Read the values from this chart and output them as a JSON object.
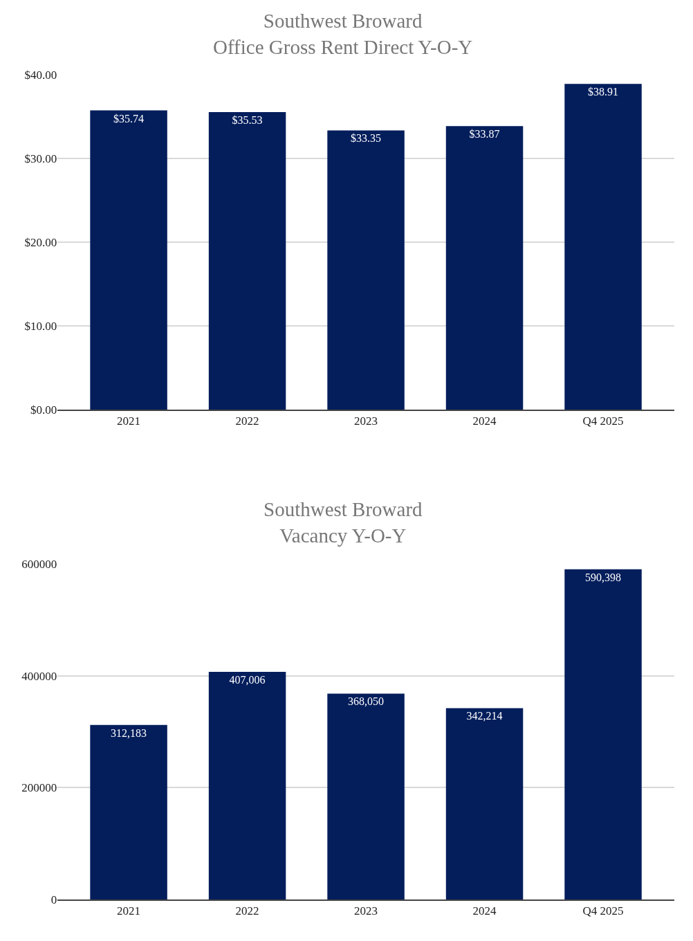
{
  "chart_data": [
    {
      "type": "bar",
      "title": "Southwest Broward\nOffice Gross Rent Direct Y-O-Y",
      "categories": [
        "2021",
        "2022",
        "2023",
        "2024",
        "Q4 2025"
      ],
      "values": [
        35.74,
        35.53,
        33.35,
        33.87,
        38.91
      ],
      "value_labels": [
        "$35.74",
        "$35.53",
        "$33.35",
        "$33.87",
        "$38.91"
      ],
      "color": "#041e5c",
      "ylim": [
        0,
        40
      ],
      "yticks": [
        {
          "value": 0,
          "label": "$0.00"
        },
        {
          "value": 10,
          "label": "$10.00"
        },
        {
          "value": 20,
          "label": "$20.00"
        },
        {
          "value": 30,
          "label": "$30.00"
        },
        {
          "value": 40,
          "label": "$40.00"
        }
      ],
      "grid": "y",
      "legend": false
    },
    {
      "type": "bar",
      "title": "Southwest Broward\nVacancy Y-O-Y",
      "categories": [
        "2021",
        "2022",
        "2023",
        "2024",
        "Q4 2025"
      ],
      "values": [
        312183,
        407006,
        368050,
        342214,
        590398
      ],
      "value_labels": [
        "312,183",
        "407,006",
        "368,050",
        "342,214",
        "590,398"
      ],
      "color": "#041e5c",
      "ylim": [
        0,
        600000
      ],
      "yticks": [
        0,
        200000,
        400000,
        600000
      ],
      "grid": "y",
      "legend": false
    }
  ]
}
